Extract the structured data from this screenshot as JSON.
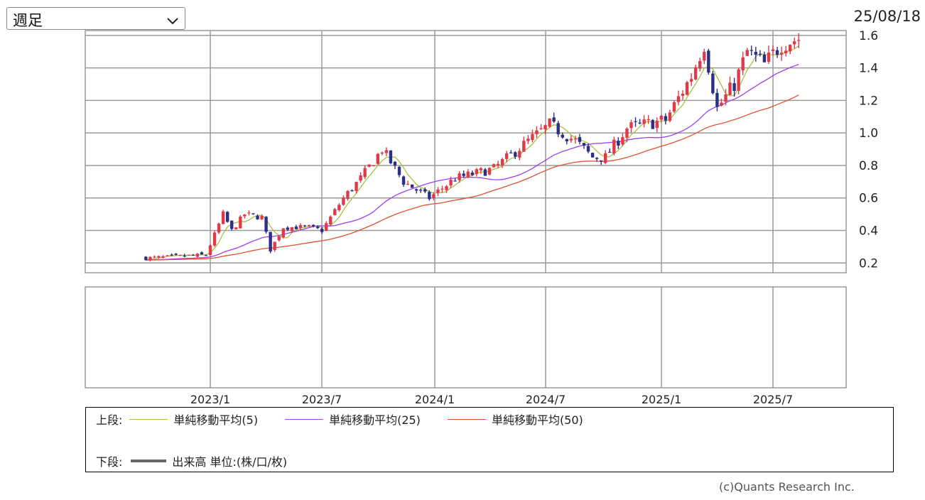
{
  "controls": {
    "period_label": "週足",
    "date": "25/08/18"
  },
  "colors": {
    "up": "#e03a48",
    "down": "#2c2f86",
    "ma5": "#a4c53f",
    "ma25": "#9b3ff0",
    "ma50": "#e4512e",
    "grid": "#9a9a9a"
  },
  "icons": {
    "dropdown": "chevron-down-icon"
  },
  "chart_data": {
    "type": "candlestick",
    "ylim": [
      0.14,
      1.63
    ],
    "y_ticks": [
      "0.2",
      "0.4",
      "0.6",
      "0.8",
      "1.0",
      "1.2",
      "1.4",
      "1.6"
    ],
    "x_ticks": [
      "2023/1",
      "2023/7",
      "2024/1",
      "2024/7",
      "2025/1",
      "2025/7"
    ],
    "x_tick_dates": [
      "2023-01-02",
      "2023-07-03",
      "2024-01-01",
      "2024-07-01",
      "2025-01-06",
      "2025-07-07"
    ],
    "close_anchors": [
      [
        "2022-09-19",
        0.23
      ],
      [
        "2022-12-26",
        0.25
      ],
      [
        "2023-01-23",
        0.5
      ],
      [
        "2023-02-06",
        0.4
      ],
      [
        "2023-02-27",
        0.5
      ],
      [
        "2023-03-27",
        0.48
      ],
      [
        "2023-04-10",
        0.28
      ],
      [
        "2023-05-01",
        0.42
      ],
      [
        "2023-06-12",
        0.42
      ],
      [
        "2023-07-03",
        0.4
      ],
      [
        "2023-08-07",
        0.6
      ],
      [
        "2023-09-04",
        0.72
      ],
      [
        "2023-10-09",
        0.9
      ],
      [
        "2023-11-13",
        0.7
      ],
      [
        "2023-12-25",
        0.6
      ],
      [
        "2024-02-05",
        0.72
      ],
      [
        "2024-04-08",
        0.78
      ],
      [
        "2024-06-03",
        0.95
      ],
      [
        "2024-07-08",
        1.05
      ],
      [
        "2024-08-19",
        0.95
      ],
      [
        "2024-09-16",
        0.85
      ],
      [
        "2024-10-07",
        0.85
      ],
      [
        "2024-11-11",
        1.03
      ],
      [
        "2025-01-13",
        1.08
      ],
      [
        "2025-02-24",
        1.35
      ],
      [
        "2025-03-17",
        1.55
      ],
      [
        "2025-04-07",
        1.15
      ],
      [
        "2025-05-05",
        1.3
      ],
      [
        "2025-05-26",
        1.5
      ],
      [
        "2025-06-23",
        1.42
      ],
      [
        "2025-07-21",
        1.55
      ],
      [
        "2025-08-18",
        1.58
      ]
    ],
    "series": [
      {
        "name": "単純移動平均(5)",
        "window": 5
      },
      {
        "name": "単純移動平均(25)",
        "window": 25
      },
      {
        "name": "単純移動平均(50)",
        "window": 50
      }
    ],
    "volume_panel": {
      "label": "出来高 単位:(株/口/枚)"
    }
  },
  "legend": {
    "upper_label": "上段:",
    "lower_label": "下段:",
    "ma5": "単純移動平均(5)",
    "ma25": "単純移動平均(25)",
    "ma50": "単純移動平均(50)",
    "volume": "出来高 単位:(株/口/枚)"
  },
  "footer": {
    "copyright": "(c)Quants Research Inc."
  }
}
